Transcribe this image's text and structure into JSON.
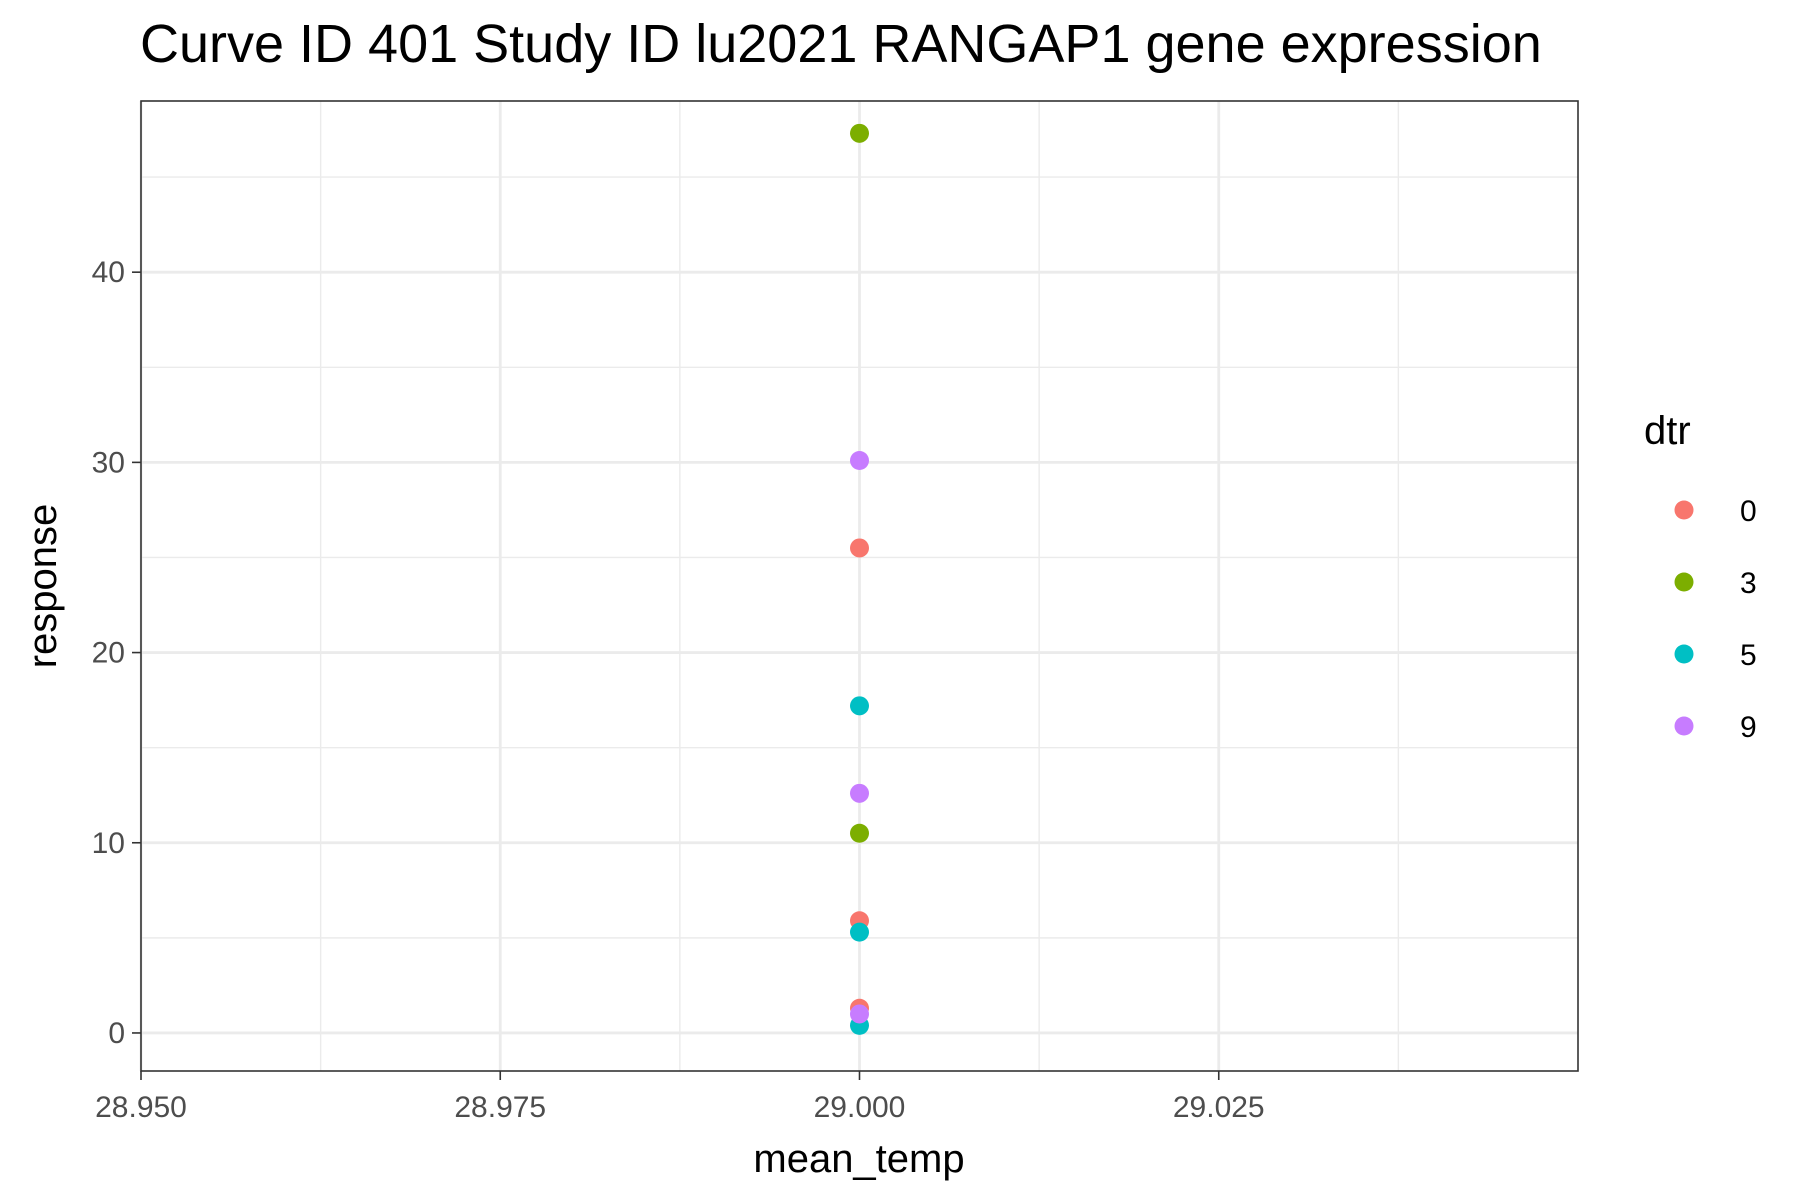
{
  "chart_data": {
    "type": "scatter",
    "title": "Curve ID 401 Study ID lu2021 RANGAP1 gene expression",
    "xlabel": "mean_temp",
    "ylabel": "response",
    "xlim": [
      28.95,
      29.05
    ],
    "ylim": [
      -2,
      49
    ],
    "x_ticks": [
      28.95,
      28.975,
      29.0,
      29.025
    ],
    "x_tick_labels": [
      "28.950",
      "28.975",
      "29.000",
      "29.025"
    ],
    "y_ticks": [
      0,
      10,
      20,
      30,
      40
    ],
    "y_tick_labels": [
      "0",
      "10",
      "20",
      "30",
      "40"
    ],
    "grid": true,
    "legend": {
      "title": "dtr",
      "position": "right"
    },
    "series": [
      {
        "name": "0",
        "color": "#F8766D",
        "x": [
          29.0,
          29.0,
          29.0
        ],
        "y": [
          25.5,
          5.9,
          1.3
        ]
      },
      {
        "name": "3",
        "color": "#7CAE00",
        "x": [
          29.0,
          29.0
        ],
        "y": [
          47.3,
          10.5
        ]
      },
      {
        "name": "5",
        "color": "#00BFC4",
        "x": [
          29.0,
          29.0,
          29.0
        ],
        "y": [
          17.2,
          5.3,
          0.4
        ]
      },
      {
        "name": "9",
        "color": "#C77CFF",
        "x": [
          29.0,
          29.0,
          29.0
        ],
        "y": [
          30.1,
          12.6,
          1.0
        ]
      }
    ]
  }
}
